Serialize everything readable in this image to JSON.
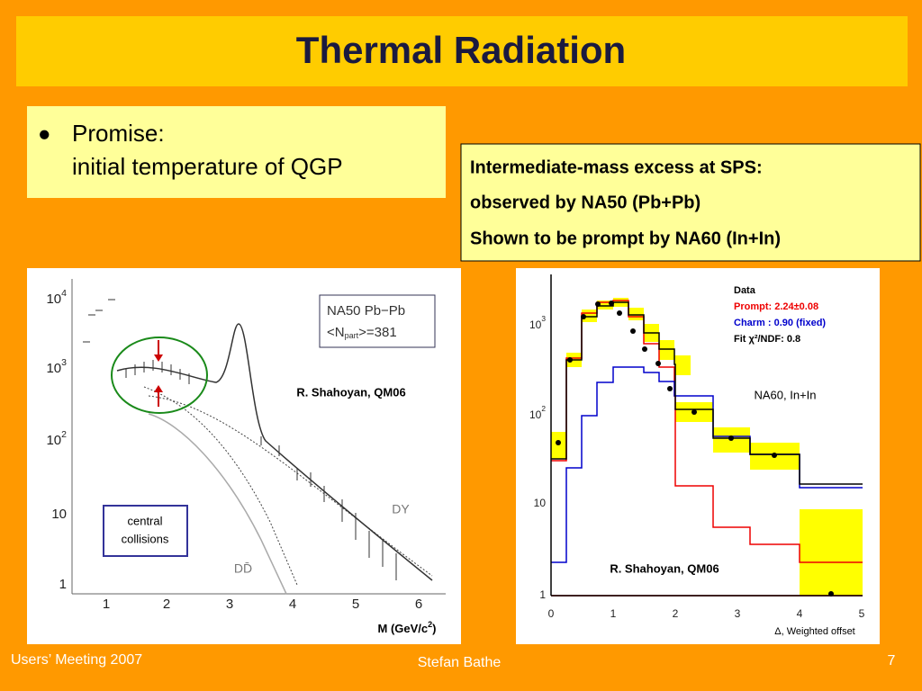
{
  "header": {
    "title": "Thermal Radiation"
  },
  "bullet": {
    "mark": "●",
    "lines": [
      "Promise:",
      "initial temperature of QGP"
    ]
  },
  "info_box": {
    "lines": [
      "Intermediate-mass excess at SPS:",
      "observed by NA50 (Pb+Pb)",
      "Shown to be prompt by NA60 (In+In)"
    ]
  },
  "left_plot": {
    "yticks": [
      {
        "base": "10",
        "exp": "4"
      },
      {
        "base": "10",
        "exp": "3"
      },
      {
        "base": "10",
        "exp": "2"
      },
      {
        "base": "10",
        "exp": ""
      },
      {
        "base": "1",
        "exp": ""
      }
    ],
    "xticks": [
      "1",
      "2",
      "3",
      "4",
      "5",
      "6"
    ],
    "legend": [
      "NA50  Pb−Pb",
      "<N",
      "part",
      ">=381"
    ],
    "credit": "R. Shahoyan, QM06",
    "curve_labels": [
      "DY",
      "DD̄"
    ],
    "note": [
      "central",
      "collisions"
    ],
    "xlabel": {
      "text": "M (GeV/c",
      "exp": "2",
      "close": ")"
    }
  },
  "right_plot": {
    "yticks": [
      {
        "base": "10",
        "exp": "3"
      },
      {
        "base": "10",
        "exp": "2"
      },
      {
        "base": "10",
        "exp": ""
      },
      {
        "base": "1",
        "exp": ""
      }
    ],
    "xticks": [
      "0",
      "1",
      "2",
      "3",
      "4",
      "5"
    ],
    "legend": [
      "Data",
      "Prompt: 2.24±0.08",
      "Charm : 0.90 (fixed)",
      "Fit  χ²/NDF:  0.8"
    ],
    "label": "NA60, In+In",
    "credit": "R. Shahoyan, QM06",
    "xlabel": "Δ, Weighted offset"
  },
  "footer": {
    "left": "Users’ Meeting 2007",
    "center": "Stefan Bathe",
    "page": "7"
  }
}
